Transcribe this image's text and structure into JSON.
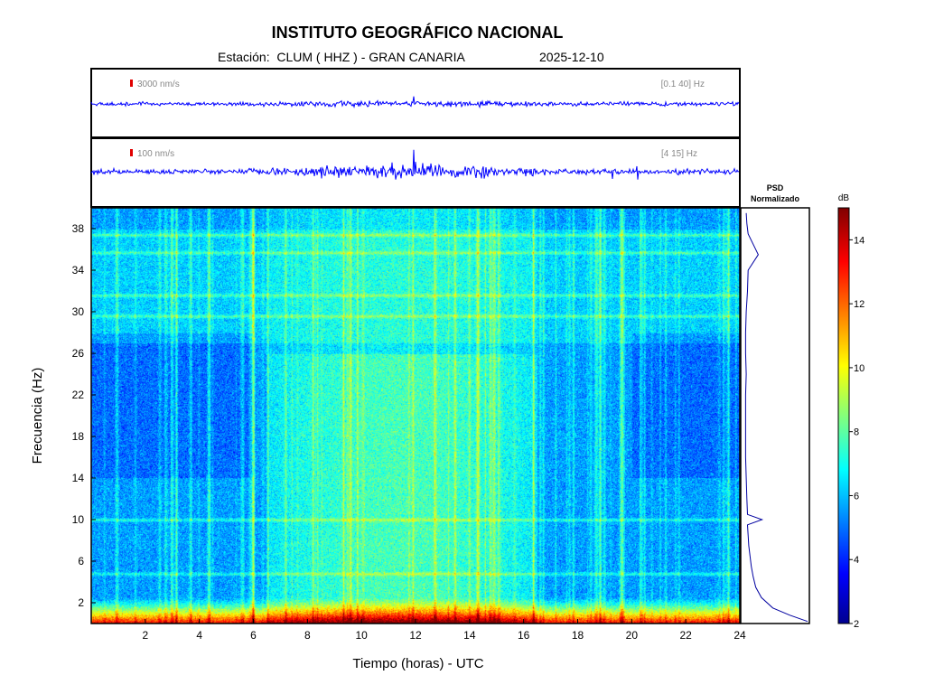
{
  "header": {
    "title": "INSTITUTO GEOGRÁFICO NACIONAL",
    "station": "Estación:  CLUM ( HHZ ) - GRAN CANARIA",
    "date": "2025-12-10"
  },
  "traces": [
    {
      "scale_label": "3000 nm/s",
      "band_label": "[0.1 40] Hz",
      "color": "#0000ff",
      "scale_color": "#e00000"
    },
    {
      "scale_label": "100 nm/s",
      "band_label": "[4 15] Hz",
      "color": "#0000ff",
      "scale_color": "#e00000"
    }
  ],
  "chart_data": [
    {
      "type": "heatmap",
      "xlabel": "Tiempo (horas) - UTC",
      "ylabel": "Frecuencia  (Hz)",
      "xlim": [
        0,
        24
      ],
      "ylim": [
        0,
        40
      ],
      "xticks": [
        2,
        4,
        6,
        8,
        10,
        12,
        14,
        16,
        18,
        20,
        22,
        24
      ],
      "yticks": [
        2,
        6,
        10,
        14,
        18,
        22,
        26,
        30,
        34,
        38
      ],
      "colorscale": "jet",
      "value_range_db": [
        2,
        15
      ],
      "features": {
        "low_frequency_band_hz": [
          0,
          2.5
        ],
        "daytime_noise_increase_hours": [
          7,
          16
        ],
        "persistent_lines_hz": [
          37.4,
          35.7,
          31.6,
          29.6,
          10.0,
          4.8
        ]
      }
    },
    {
      "type": "line",
      "title": "PSD\nNormalizado",
      "series": [
        {
          "freq_hz": [
            0.2,
            0.8,
            1.5,
            2.5,
            3.5,
            4.5,
            5.5,
            6.5,
            7.5,
            8.5,
            9.5,
            10.0,
            10.5,
            12,
            14,
            16,
            18,
            20,
            22,
            24,
            26,
            28,
            30,
            32,
            34,
            35.5,
            36.5,
            37.5,
            38.5,
            39.5
          ],
          "value": [
            1.0,
            0.72,
            0.45,
            0.27,
            0.18,
            0.14,
            0.11,
            0.09,
            0.07,
            0.06,
            0.05,
            0.28,
            0.05,
            0.04,
            0.03,
            0.02,
            0.02,
            0.02,
            0.02,
            0.03,
            0.02,
            0.02,
            0.03,
            0.05,
            0.06,
            0.22,
            0.14,
            0.06,
            0.04,
            0.03
          ]
        }
      ]
    },
    {
      "type": "colorbar",
      "label": "dB",
      "range": [
        2,
        15
      ],
      "ticks": [
        2,
        4,
        6,
        8,
        10,
        12,
        14
      ]
    }
  ]
}
